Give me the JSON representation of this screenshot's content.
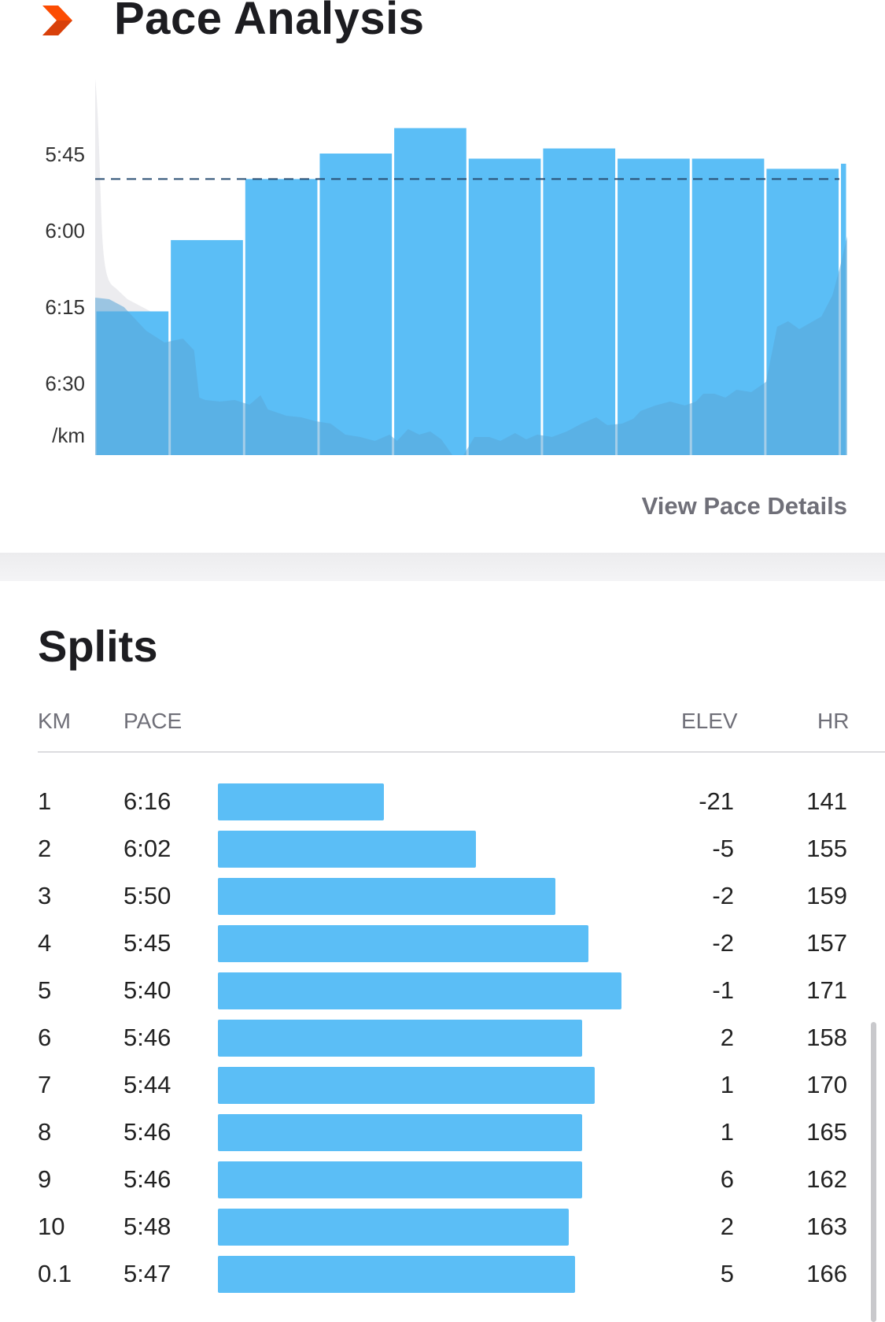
{
  "header": {
    "title": "Pace Analysis",
    "logo_icon": "orange-chevron-icon",
    "accent_color": "#fc4c02"
  },
  "pace_chart": {
    "y_ticks": [
      "5:45",
      "6:00",
      "6:15",
      "6:30"
    ],
    "y_unit": "/km",
    "avg_pace": "5:50",
    "bar_color": "#5bbef6",
    "elevation_color": "#5aa5d7",
    "avg_line_color": "#2b4f73",
    "view_details_label": "View Pace Details"
  },
  "splits": {
    "title": "Splits",
    "columns": {
      "km": "KM",
      "pace": "PACE",
      "elev": "ELEV",
      "hr": "HR"
    },
    "rows": [
      {
        "km": "1",
        "pace": "6:16",
        "elev": "-21",
        "hr": "141"
      },
      {
        "km": "2",
        "pace": "6:02",
        "elev": "-5",
        "hr": "155"
      },
      {
        "km": "3",
        "pace": "5:50",
        "elev": "-2",
        "hr": "159"
      },
      {
        "km": "4",
        "pace": "5:45",
        "elev": "-2",
        "hr": "157"
      },
      {
        "km": "5",
        "pace": "5:40",
        "elev": "-1",
        "hr": "171"
      },
      {
        "km": "6",
        "pace": "5:46",
        "elev": "2",
        "hr": "158"
      },
      {
        "km": "7",
        "pace": "5:44",
        "elev": "1",
        "hr": "170"
      },
      {
        "km": "8",
        "pace": "5:46",
        "elev": "1",
        "hr": "165"
      },
      {
        "km": "9",
        "pace": "5:46",
        "elev": "6",
        "hr": "162"
      },
      {
        "km": "10",
        "pace": "5:48",
        "elev": "2",
        "hr": "163"
      },
      {
        "km": "0.1",
        "pace": "5:47",
        "elev": "5",
        "hr": "166"
      }
    ]
  }
}
